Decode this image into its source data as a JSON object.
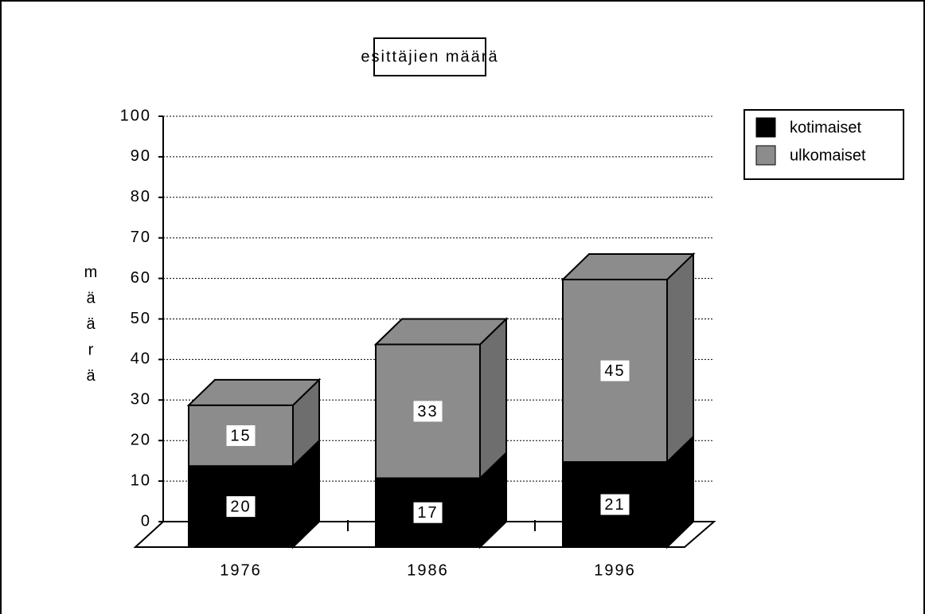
{
  "chart_data": {
    "type": "bar3d_stacked",
    "title": "esittäjien  määrä",
    "y_label": "määrä",
    "categories": [
      "1976",
      "1986",
      "1996"
    ],
    "series": [
      {
        "name": "kotimaiset",
        "color": "#000000",
        "values": [
          20,
          17,
          21
        ]
      },
      {
        "name": "ulkomaiset",
        "color": "#8c8c8c",
        "values": [
          15,
          33,
          45
        ]
      }
    ],
    "ylim": [
      0,
      100
    ],
    "yticks": [
      0,
      10,
      20,
      30,
      40,
      50,
      60,
      70,
      80,
      90,
      100
    ],
    "grid": true,
    "legend": "upper right"
  }
}
